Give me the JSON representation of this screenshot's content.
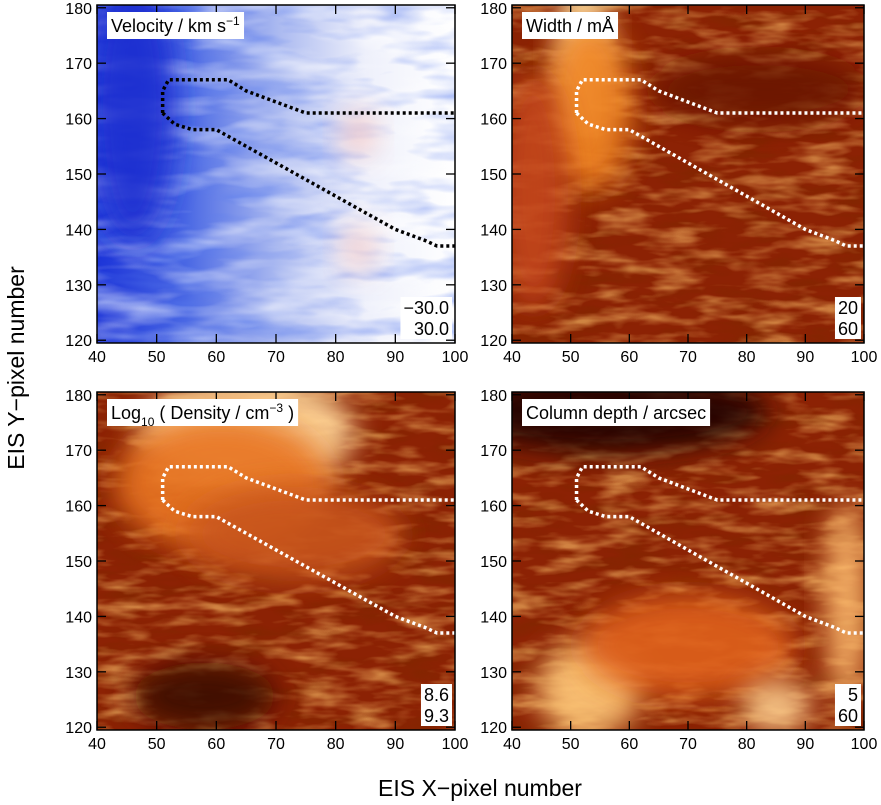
{
  "x_label": "EIS X−pixel number",
  "y_label": "EIS Y−pixel number",
  "chart_data": [
    {
      "type": "heatmap",
      "colormap": "blue-white-red",
      "title": [
        {
          "text": "Velocity / km s"
        },
        {
          "text": "−1",
          "script": "sup"
        }
      ],
      "scale_labels": [
        {
          "value": -30,
          "label": "−30.0"
        },
        {
          "value": 30,
          "label": "30.0"
        }
      ],
      "xlim": [
        40,
        100
      ],
      "xticks": [
        40,
        50,
        60,
        70,
        80,
        90,
        100
      ],
      "ylim": [
        119.5,
        180.5
      ],
      "yticks": [
        120,
        130,
        140,
        150,
        160,
        170,
        180
      ],
      "boundary_color": "#000000",
      "series": [
        {
          "x": [
            51,
            51,
            52,
            62,
            65,
            70,
            75,
            100
          ],
          "y": [
            161,
            165,
            167,
            167,
            165,
            163,
            161,
            161
          ]
        },
        {
          "x": [
            51,
            53,
            56,
            60,
            65,
            70,
            75,
            80,
            85,
            90,
            95,
            97,
            100
          ],
          "y": [
            161,
            159,
            158,
            158,
            155,
            152,
            149,
            146,
            143,
            140,
            138,
            137,
            137
          ]
        }
      ]
    },
    {
      "type": "heatmap",
      "colormap": "heat",
      "title": [
        {
          "text": "Width / mÅ"
        }
      ],
      "scale_labels": [
        20,
        60
      ],
      "xlim": [
        40,
        100
      ],
      "xticks": [
        40,
        50,
        60,
        70,
        80,
        90,
        100
      ],
      "ylim": [
        119.5,
        180.5
      ],
      "yticks": [
        120,
        130,
        140,
        150,
        160,
        170,
        180
      ],
      "boundary_color": "#ffffff",
      "series": [
        {
          "x": [
            51,
            51,
            52,
            62,
            65,
            70,
            75,
            100
          ],
          "y": [
            161,
            165,
            167,
            167,
            165,
            163,
            161,
            161
          ]
        },
        {
          "x": [
            51,
            53,
            56,
            60,
            65,
            70,
            75,
            80,
            85,
            90,
            95,
            97,
            100
          ],
          "y": [
            161,
            159,
            158,
            158,
            155,
            152,
            149,
            146,
            143,
            140,
            138,
            137,
            137
          ]
        }
      ]
    },
    {
      "type": "heatmap",
      "colormap": "heat",
      "title": [
        {
          "text": "Log"
        },
        {
          "text": "10",
          "script": "sub"
        },
        {
          "text": " ( Density / cm"
        },
        {
          "text": "−3",
          "script": "sup"
        },
        {
          "text": " )"
        }
      ],
      "scale_labels": [
        8.6,
        9.3
      ],
      "xlim": [
        40,
        100
      ],
      "xticks": [
        40,
        50,
        60,
        70,
        80,
        90,
        100
      ],
      "ylim": [
        119.5,
        180.5
      ],
      "yticks": [
        120,
        130,
        140,
        150,
        160,
        170,
        180
      ],
      "boundary_color": "#ffffff",
      "series": [
        {
          "x": [
            51,
            51,
            52,
            62,
            65,
            70,
            75,
            100
          ],
          "y": [
            161,
            165,
            167,
            167,
            165,
            163,
            161,
            161
          ]
        },
        {
          "x": [
            51,
            53,
            56,
            60,
            65,
            70,
            75,
            80,
            85,
            90,
            95,
            97,
            100
          ],
          "y": [
            161,
            159,
            158,
            158,
            155,
            152,
            149,
            146,
            143,
            140,
            138,
            137,
            137
          ]
        }
      ]
    },
    {
      "type": "heatmap",
      "colormap": "heat",
      "title": [
        {
          "text": "Column depth / arcsec"
        }
      ],
      "scale_labels": [
        5,
        60
      ],
      "xlim": [
        40,
        100
      ],
      "xticks": [
        40,
        50,
        60,
        70,
        80,
        90,
        100
      ],
      "ylim": [
        119.5,
        180.5
      ],
      "yticks": [
        120,
        130,
        140,
        150,
        160,
        170,
        180
      ],
      "boundary_color": "#ffffff",
      "series": [
        {
          "x": [
            51,
            51,
            52,
            62,
            65,
            70,
            75,
            100
          ],
          "y": [
            161,
            165,
            167,
            167,
            165,
            163,
            161,
            161
          ]
        },
        {
          "x": [
            51,
            53,
            56,
            60,
            65,
            70,
            75,
            80,
            85,
            90,
            95,
            97,
            100
          ],
          "y": [
            161,
            159,
            158,
            158,
            155,
            152,
            149,
            146,
            143,
            140,
            138,
            137,
            137
          ]
        }
      ]
    }
  ]
}
